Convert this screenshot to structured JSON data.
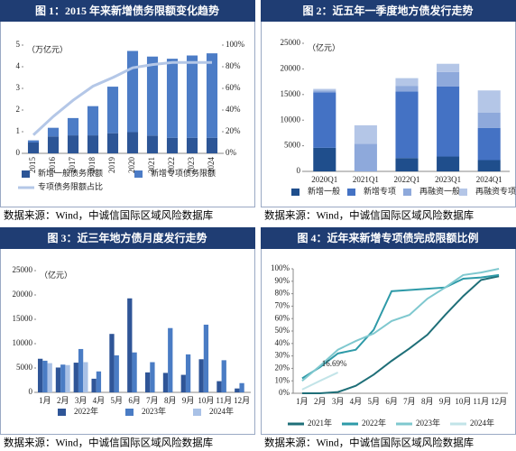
{
  "chart_data": [
    {
      "type": "bar",
      "stacked": true,
      "title": "图 1：2015 年来新增债务限额变化趋势",
      "unit": "（万亿元）",
      "source": "数据来源：Wind，中诚信国际区域风险数据库",
      "categories": [
        "2015",
        "2016",
        "2017",
        "2018",
        "2019",
        "2020",
        "2021",
        "2022",
        "2023",
        "2024"
      ],
      "series": [
        {
          "name": "新增一般债务限额",
          "color": "#2c5596",
          "values": [
            0.5,
            0.78,
            0.83,
            0.83,
            0.93,
            0.98,
            0.82,
            0.72,
            0.72,
            0.72
          ]
        },
        {
          "name": "新增专项债务限额",
          "color": "#4c7cc6",
          "values": [
            0.1,
            0.4,
            0.8,
            1.35,
            2.15,
            3.75,
            3.65,
            3.65,
            3.8,
            3.9
          ]
        },
        {
          "name": "专项债务限额占比",
          "color": "#b4c7e7",
          "type": "line",
          "axis": "y2",
          "values": [
            17,
            34,
            49,
            62,
            70,
            79,
            82,
            84,
            84,
            84
          ]
        }
      ],
      "ylim": [
        0,
        5
      ],
      "yticks": [
        0,
        1,
        2,
        3,
        4,
        5
      ],
      "y2lim": [
        0,
        100
      ],
      "y2ticks": [
        {
          "value": 0,
          "label": "0%"
        },
        {
          "value": 20,
          "label": "20%"
        },
        {
          "value": 40,
          "label": "40%"
        },
        {
          "value": 60,
          "label": "60%"
        },
        {
          "value": 80,
          "label": "80%"
        },
        {
          "value": 100,
          "label": "100%"
        }
      ]
    },
    {
      "type": "bar",
      "stacked": true,
      "title": "图 2：近五年一季度地方债发行走势",
      "unit": "（亿元）",
      "source": "数据来源：Wind，中诚信国际区域风险数据库",
      "categories": [
        "2020Q1",
        "2021Q1",
        "2022Q1",
        "2023Q1",
        "2024Q1"
      ],
      "series": [
        {
          "name": "新增一般",
          "color": "#1f4e8c",
          "values": [
            4600,
            0,
            2600,
            2900,
            2200
          ]
        },
        {
          "name": "新增专项",
          "color": "#4472c4",
          "values": [
            10800,
            0,
            13000,
            13700,
            6300
          ]
        },
        {
          "name": "再融资一般",
          "color": "#8ea9db",
          "values": [
            400,
            5400,
            1100,
            2800,
            3000
          ]
        },
        {
          "name": "再融资专项",
          "color": "#b4c6e7",
          "values": [
            300,
            3600,
            1500,
            1600,
            4300
          ]
        }
      ],
      "ylim": [
        0,
        25000
      ],
      "yticks": [
        0,
        5000,
        10000,
        15000,
        20000,
        25000
      ]
    },
    {
      "type": "bar",
      "stacked": false,
      "title": "图 3：近三年地方债月度发行走势",
      "unit": "（亿元）",
      "source": "数据来源：Wind，中诚信国际区域风险数据库",
      "categories": [
        "1月",
        "2月",
        "3月",
        "4月",
        "5月",
        "6月",
        "7月",
        "8月",
        "9月",
        "10月",
        "11月",
        "12月"
      ],
      "series": [
        {
          "name": "2022年",
          "color": "#2f5597",
          "values": [
            6900,
            5100,
            6100,
            2800,
            12000,
            19300,
            4100,
            4000,
            3600,
            6800,
            2300,
            800
          ]
        },
        {
          "name": "2023年",
          "color": "#4a7cc4",
          "values": [
            6500,
            5700,
            8900,
            4300,
            7600,
            8200,
            6200,
            13200,
            7800,
            13900,
            6600,
            1900
          ]
        },
        {
          "name": "2024年",
          "color": "#a9c1e6",
          "values": [
            6000,
            5600,
            6200,
            null,
            null,
            null,
            null,
            null,
            null,
            null,
            null,
            null
          ]
        }
      ],
      "ylim": [
        0,
        25000
      ],
      "yticks": [
        0,
        5000,
        10000,
        15000,
        20000,
        25000
      ]
    },
    {
      "type": "line",
      "title": "图 4：近年来新增专项债完成限额比例",
      "source": "数据来源：Wind，中诚信国际区域风险数据库",
      "categories": [
        "1月",
        "2月",
        "3月",
        "4月",
        "5月",
        "6月",
        "7月",
        "8月",
        "9月",
        "10月",
        "11月",
        "12月"
      ],
      "series": [
        {
          "name": "2021年",
          "color": "#1f6f78",
          "values": [
            0,
            0,
            1,
            6,
            15,
            26,
            36,
            47,
            63,
            78,
            91,
            94
          ]
        },
        {
          "name": "2022年",
          "color": "#2e9aa8",
          "values": [
            12,
            21,
            32,
            35,
            51,
            82,
            83,
            84,
            85,
            92,
            93,
            95
          ]
        },
        {
          "name": "2023年",
          "color": "#7fc8cf",
          "values": [
            10,
            22,
            35,
            42,
            48,
            58,
            63,
            76,
            85,
            95,
            97,
            100
          ]
        },
        {
          "name": "2024年",
          "color": "#c2e4e8",
          "values": [
            3,
            10,
            16.69,
            null,
            null,
            null,
            null,
            null,
            null,
            null,
            null,
            null
          ],
          "value_labels": [
            null,
            null,
            "16.69%",
            null,
            null,
            null,
            null,
            null,
            null,
            null,
            null,
            null
          ]
        }
      ],
      "ylim": [
        0,
        100
      ],
      "yticks": [
        {
          "value": 0,
          "label": "0%"
        },
        {
          "value": 10,
          "label": "10%"
        },
        {
          "value": 20,
          "label": "20%"
        },
        {
          "value": 30,
          "label": "30%"
        },
        {
          "value": 40,
          "label": "40%"
        },
        {
          "value": 50,
          "label": "50%"
        },
        {
          "value": 60,
          "label": "60%"
        },
        {
          "value": 70,
          "label": "70%"
        },
        {
          "value": 80,
          "label": "80%"
        },
        {
          "value": 90,
          "label": "90%"
        },
        {
          "value": 100,
          "label": "100%"
        }
      ]
    }
  ]
}
